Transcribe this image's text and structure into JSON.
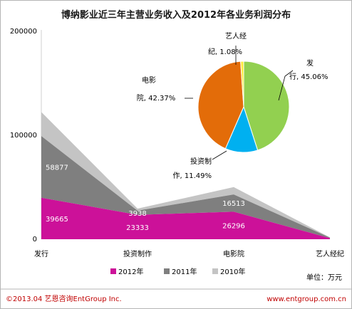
{
  "chart_data": [
    {
      "type": "area",
      "title": "博纳影业近三年主营业务收入及2012年各业务利润分布",
      "categories": [
        "发行",
        "投资制作",
        "电影院",
        "艺人经纪"
      ],
      "ylim": [
        0,
        200000
      ],
      "yticks": [
        "0",
        "100000",
        "200000"
      ],
      "unit_label": "单位：万元",
      "legend_position": "bottom",
      "series": [
        {
          "name": "2012年",
          "color": "#cc1199",
          "values": [
            39665,
            23333,
            26296,
            1000
          ]
        },
        {
          "name": "2011年",
          "color": "#7f7f7f",
          "values": [
            58877,
            3938,
            16513,
            500
          ]
        },
        {
          "name": "2010年",
          "color": "#c4c4c4",
          "values": [
            23000,
            2000,
            7000,
            300
          ]
        }
      ],
      "data_labels": [
        {
          "series": 0,
          "index": 0,
          "text": "39665"
        },
        {
          "series": 0,
          "index": 1,
          "text": "23333"
        },
        {
          "series": 0,
          "index": 2,
          "text": "26296"
        },
        {
          "series": 1,
          "index": 0,
          "text": "58877"
        },
        {
          "series": 1,
          "index": 1,
          "text": "3938"
        },
        {
          "series": 1,
          "index": 2,
          "text": "16513"
        }
      ]
    },
    {
      "type": "pie",
      "slices": [
        {
          "label": "发行",
          "value": 45.06,
          "percent_text": "45.06%",
          "label_line1": "发",
          "label_line2": "行, 45.06%",
          "color": "#92d050"
        },
        {
          "label": "投资制作",
          "value": 11.49,
          "percent_text": "11.49%",
          "label_line1": "投资制",
          "label_line2": "作, 11.49%",
          "color": "#00b0f0"
        },
        {
          "label": "电影院",
          "value": 42.37,
          "percent_text": "42.37%",
          "label_line1": "电影",
          "label_line2": "院, 42.37%",
          "color": "#e36c09"
        },
        {
          "label": "艺人经纪",
          "value": 1.08,
          "percent_text": "1.08%",
          "label_line1": "艺人经",
          "label_line2": "纪, 1.08%",
          "color": "#ffeb3b"
        }
      ]
    }
  ],
  "footer": {
    "left": "©2013.04  艺恩咨询EntGroup Inc.",
    "right": "www.entgroup.com.cn"
  }
}
